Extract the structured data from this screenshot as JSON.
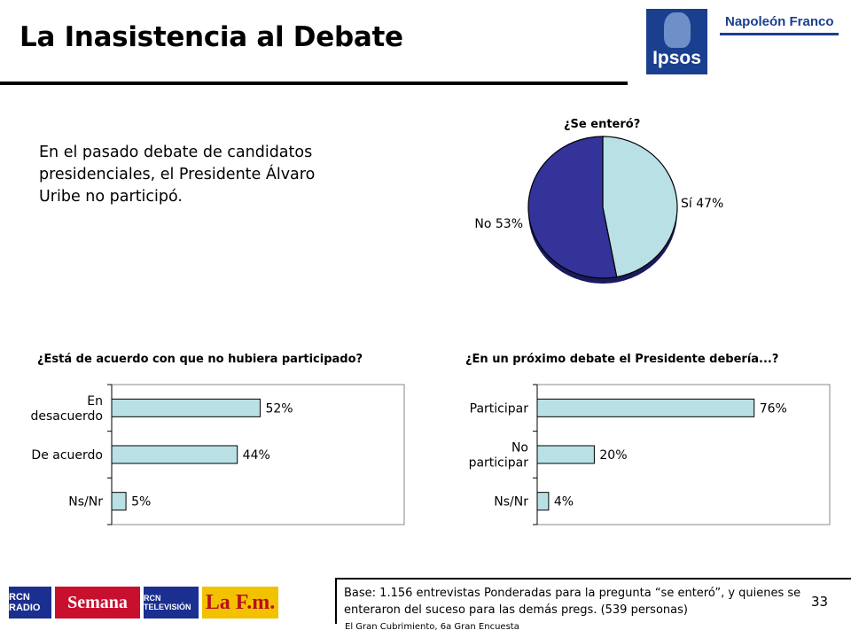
{
  "header": {
    "title": "La Inasistencia al Debate",
    "brand_ipsos": "Ipsos",
    "brand_partner": "Napoleón Franco"
  },
  "intro_text": "En el pasado debate de candidatos presidenciales, el Presidente Álvaro Uribe no participó.",
  "chart_data": [
    {
      "type": "pie",
      "title": "¿Se enteró?",
      "slices": [
        {
          "label": "Sí",
          "value": 47,
          "display": "Sí 47%",
          "color": "#b9e1e5"
        },
        {
          "label": "No",
          "value": 53,
          "display": "No 53%",
          "color": "#333399"
        }
      ]
    },
    {
      "type": "bar",
      "orientation": "horizontal",
      "title": "¿Está de acuerdo con que no hubiera participado?",
      "categories": [
        "En desacuerdo",
        "De acuerdo",
        "Ns/Nr"
      ],
      "values": [
        52,
        44,
        5
      ],
      "value_labels": [
        "52%",
        "44%",
        "5%"
      ],
      "xlim": [
        0,
        100
      ],
      "bar_color": "#b9e1e5"
    },
    {
      "type": "bar",
      "orientation": "horizontal",
      "title": "¿En un próximo debate el Presidente debería...?",
      "categories": [
        "Participar",
        "No participar",
        "Ns/Nr"
      ],
      "values": [
        76,
        20,
        4
      ],
      "value_labels": [
        "76%",
        "20%",
        "4%"
      ],
      "xlim": [
        0,
        100
      ],
      "bar_color": "#b9e1e5"
    }
  ],
  "footer": {
    "base_text": "Base: 1.156 entrevistas Ponderadas para la pregunta “se enteró”, y quienes se enteraron del suceso para las demás pregs. (539 personas)",
    "source": "El Gran Cubrimiento, 6a Gran Encuesta",
    "page_number": "33",
    "logos": {
      "rcn_radio": "RCN RADIO",
      "semana": "Semana",
      "rcn_tv": "RCN TELEVISIÓN",
      "lafm": "La F.m."
    }
  }
}
